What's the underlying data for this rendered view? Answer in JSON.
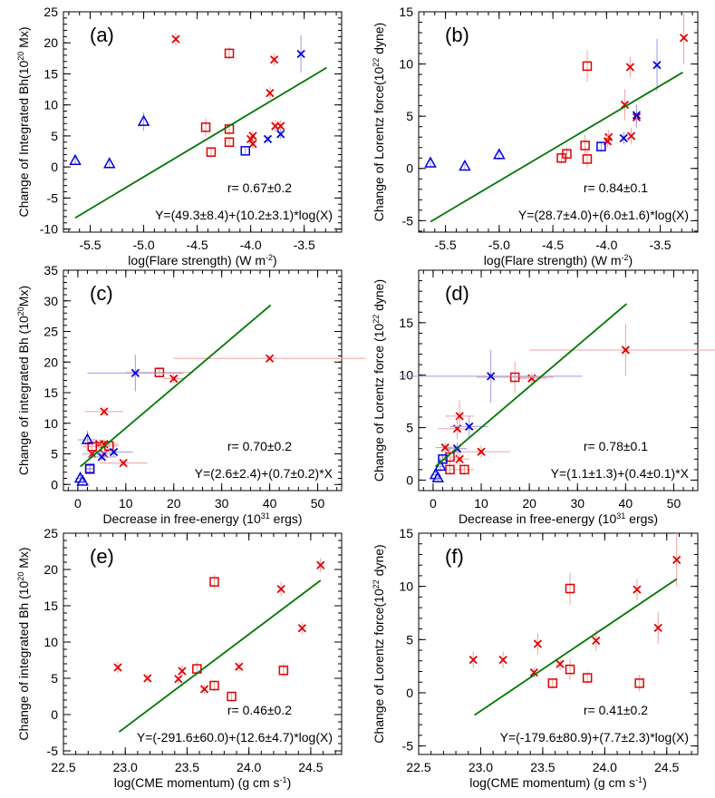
{
  "chart_data": [
    {
      "type": "scatter",
      "panel_label": "(a)",
      "ylabel": "Change of Integrated Bh(10",
      "ylabel_exp": "20",
      "ylabel_unit": " Mx)",
      "xlabel": "log(Flare strength) (W m",
      "xlabel_exp": "-2",
      "xlabel_tail": ")",
      "xlim": [
        -5.75,
        -3.15
      ],
      "ylim": [
        -10.5,
        25
      ],
      "xticks": [
        -5.5,
        -5.0,
        -4.5,
        -4.0,
        -3.5
      ],
      "xtick_labels": [
        "-5.5",
        "-5.0",
        "-4.5",
        "-4.0",
        "-3.5"
      ],
      "yticks": [
        -10,
        -5,
        0,
        5,
        10,
        15,
        20,
        25
      ],
      "ytick_labels": [
        "-10",
        "-5",
        "0",
        "5",
        "10",
        "15",
        "20",
        "25"
      ],
      "correlation": "r= 0.67±0.2",
      "fit_label": "Y=(49.3±8.4)+(10.2±3.1)*log(X)",
      "fit_line": [
        [
          -5.64,
          -8.2
        ],
        [
          -3.29,
          16.0
        ]
      ],
      "series": [
        {
          "marker": "x",
          "color": "#e00000",
          "points": [
            [
              -4.7,
              20.6,
              0,
              1.0
            ],
            [
              -3.78,
              17.3,
              0,
              1.0
            ],
            [
              -3.82,
              11.9,
              0,
              1.0
            ],
            [
              -3.77,
              6.6,
              0,
              1.0
            ],
            [
              -3.72,
              6.6,
              0,
              1.0
            ],
            [
              -3.98,
              5.0,
              0,
              0.8
            ],
            [
              -4.0,
              4.5,
              0,
              0.8
            ],
            [
              -3.98,
              3.7,
              0,
              0.8
            ]
          ]
        },
        {
          "marker": "square",
          "color": "#e00000",
          "points": [
            [
              -4.2,
              18.3,
              0,
              1.0
            ],
            [
              -4.42,
              6.4,
              0,
              1.5
            ],
            [
              -4.2,
              6.1,
              0,
              1.0
            ],
            [
              -4.2,
              4.0,
              0,
              0.8
            ],
            [
              -4.37,
              2.4,
              0,
              0.6
            ]
          ]
        },
        {
          "marker": "x",
          "color": "#0000e0",
          "points": [
            [
              -3.53,
              18.2,
              0,
              3.0
            ],
            [
              -3.72,
              5.3,
              0,
              0.8
            ],
            [
              -3.84,
              4.5,
              0,
              0.6
            ]
          ]
        },
        {
          "marker": "square",
          "color": "#0000e0",
          "points": [
            [
              -4.05,
              2.6,
              0,
              0.5
            ]
          ]
        },
        {
          "marker": "triangle",
          "color": "#0000e0",
          "points": [
            [
              -5.0,
              7.3,
              0,
              1.5
            ],
            [
              -5.64,
              1.0,
              0,
              0.6
            ],
            [
              -5.32,
              0.5,
              0,
              0.5
            ]
          ]
        }
      ]
    },
    {
      "type": "scatter",
      "panel_label": "(b)",
      "ylabel": "Change of Lorentz force(10",
      "ylabel_exp": "22",
      "ylabel_unit": " dyne)",
      "xlabel": "log(Flare strength) (W m",
      "xlabel_exp": "-2",
      "xlabel_tail": ")",
      "xlim": [
        -5.75,
        -3.15
      ],
      "ylim": [
        -6.1,
        15
      ],
      "xticks": [
        -5.5,
        -5.0,
        -4.5,
        -4.0,
        -3.5
      ],
      "xtick_labels": [
        "-5.5",
        "-5.0",
        "-4.5",
        "-4.0",
        "-3.5"
      ],
      "yticks": [
        -5,
        0,
        5,
        10,
        15
      ],
      "ytick_labels": [
        "-5",
        "0",
        "5",
        "10",
        "15"
      ],
      "correlation": "r= 0.84±0.1",
      "fit_label": "Y=(28.7±4.0)+(6.0±1.6)*log(X)",
      "fit_line": [
        [
          -5.64,
          -5.1
        ],
        [
          -3.29,
          9.2
        ]
      ],
      "series": [
        {
          "marker": "x",
          "color": "#e00000",
          "points": [
            [
              -3.28,
              12.5,
              0,
              2.5
            ],
            [
              -3.78,
              9.7,
              0,
              1.0
            ],
            [
              -3.83,
              6.1,
              0,
              1.5
            ],
            [
              -3.72,
              4.9,
              0,
              1.0
            ],
            [
              -3.77,
              3.1,
              0,
              0.8
            ],
            [
              -3.98,
              3.0,
              0,
              0.7
            ],
            [
              -3.99,
              2.6,
              0,
              0.6
            ]
          ]
        },
        {
          "marker": "square",
          "color": "#e00000",
          "points": [
            [
              -4.18,
              9.8,
              0,
              1.5
            ],
            [
              -4.2,
              2.2,
              0,
              1.0
            ],
            [
              -4.18,
              0.9,
              0,
              0.8
            ],
            [
              -4.37,
              1.4,
              0,
              0.6
            ],
            [
              -4.42,
              1.0,
              0,
              0.5
            ]
          ]
        },
        {
          "marker": "x",
          "color": "#0000e0",
          "points": [
            [
              -3.53,
              9.9,
              0,
              2.5
            ],
            [
              -3.72,
              5.1,
              0,
              1.0
            ],
            [
              -3.84,
              2.9,
              0,
              0.6
            ]
          ]
        },
        {
          "marker": "square",
          "color": "#0000e0",
          "points": [
            [
              -4.05,
              2.1,
              0,
              0.5
            ]
          ]
        },
        {
          "marker": "triangle",
          "color": "#0000e0",
          "points": [
            [
              -5.64,
              0.5,
              0,
              0.4
            ],
            [
              -5.32,
              0.2,
              0,
              0.3
            ],
            [
              -5.0,
              1.3,
              0,
              0.5
            ]
          ]
        }
      ]
    },
    {
      "type": "scatter",
      "panel_label": "(c)",
      "ylabel": "Change of integrated Bh (10",
      "ylabel_exp": "20",
      "ylabel_unit": "Mx)",
      "xlabel": "Decrease in free-energy (10",
      "xlabel_exp": "31",
      "xlabel_tail": " ergs)",
      "xlim": [
        -3,
        55
      ],
      "ylim": [
        -1,
        35
      ],
      "xticks": [
        0,
        10,
        20,
        30,
        40,
        50
      ],
      "xtick_labels": [
        "0",
        "10",
        "20",
        "30",
        "40",
        "50"
      ],
      "yticks": [
        0,
        5,
        10,
        15,
        20,
        25,
        30,
        35
      ],
      "ytick_labels": [
        "0",
        "5",
        "10",
        "15",
        "20",
        "25",
        "30",
        "35"
      ],
      "correlation": "r= 0.70±0.2",
      "fit_label": "Y=(2.6±2.4)+(0.7±0.2)*X",
      "fit_line": [
        [
          0.5,
          2.9
        ],
        [
          40.2,
          29.3
        ]
      ],
      "series": [
        {
          "marker": "x",
          "color": "#e00000",
          "points": [
            [
              40,
              20.6,
              20,
              0
            ],
            [
              20,
              17.3,
              2,
              0.8
            ],
            [
              5.5,
              11.9,
              4,
              0.8
            ],
            [
              4.5,
              6.6,
              3,
              0.8
            ],
            [
              5.5,
              6.6,
              3,
              0.8
            ],
            [
              3.0,
              5.0,
              2,
              0.5
            ],
            [
              5.5,
              5.0,
              2,
              0.5
            ],
            [
              9.5,
              3.5,
              5,
              0.6
            ]
          ]
        },
        {
          "marker": "square",
          "color": "#e00000",
          "points": [
            [
              17,
              18.3,
              7,
              0.8
            ],
            [
              3.0,
              6.2,
              2,
              0.8
            ],
            [
              6.5,
              6.3,
              2,
              0.8
            ],
            [
              2.5,
              2.5,
              0.5,
              0.6
            ]
          ]
        },
        {
          "marker": "x",
          "color": "#0000e0",
          "points": [
            [
              12,
              18.2,
              10,
              3.0
            ],
            [
              7.5,
              5.3,
              4,
              0.8
            ],
            [
              5.0,
              4.5,
              3,
              0.6
            ]
          ]
        },
        {
          "marker": "square",
          "color": "#0000e0",
          "points": [
            [
              2.5,
              2.6,
              1,
              0.5
            ]
          ]
        },
        {
          "marker": "triangle",
          "color": "#0000e0",
          "points": [
            [
              2.0,
              7.3,
              2,
              1.5
            ],
            [
              0.5,
              1.0,
              1,
              0.6
            ],
            [
              1.0,
              0.5,
              0.5,
              0.5
            ]
          ]
        }
      ]
    },
    {
      "type": "scatter",
      "panel_label": "(d)",
      "ylabel": "Change of Lorentz force (10",
      "ylabel_exp": "22",
      "ylabel_unit": " dyne)",
      "xlabel": "Decrease in free-energy (10",
      "xlabel_exp": "31",
      "xlabel_tail": " ergs)",
      "xlim": [
        -3,
        55
      ],
      "ylim": [
        -1,
        20
      ],
      "xticks": [
        0,
        10,
        20,
        30,
        40,
        50
      ],
      "xtick_labels": [
        "0",
        "10",
        "20",
        "30",
        "40",
        "50"
      ],
      "yticks": [
        0,
        5,
        10,
        15
      ],
      "ytick_labels": [
        "0",
        "5",
        "10",
        "15"
      ],
      "correlation": "r= 0.78±0.1",
      "fit_label": "Y=(1.1±1.3)+(0.4±0.1)*X",
      "fit_line": [
        [
          0.5,
          1.3
        ],
        [
          40.2,
          16.8
        ]
      ],
      "series": [
        {
          "marker": "x",
          "color": "#e00000",
          "points": [
            [
              40,
              12.4,
              20,
              2.5
            ],
            [
              20.5,
              9.7,
              3,
              0.5
            ],
            [
              5.5,
              6.1,
              3,
              1.5
            ],
            [
              5.0,
              4.9,
              4,
              1.0
            ],
            [
              5.0,
              3.0,
              2,
              0.5
            ],
            [
              2.5,
              3.1,
              2,
              0.5
            ],
            [
              10,
              2.7,
              6,
              0.6
            ],
            [
              5.5,
              2.0,
              2,
              0.6
            ]
          ]
        },
        {
          "marker": "square",
          "color": "#e00000",
          "points": [
            [
              17,
              9.8,
              8,
              1.5
            ],
            [
              3.5,
              2.2,
              2,
              1.0
            ],
            [
              3.5,
              1.0,
              1,
              0.5
            ],
            [
              6.5,
              1.0,
              2,
              0.5
            ]
          ]
        },
        {
          "marker": "x",
          "color": "#0000e0",
          "points": [
            [
              12,
              9.9,
              19,
              2.5
            ],
            [
              7.5,
              5.1,
              4,
              1.0
            ],
            [
              5.0,
              3.0,
              2,
              0.6
            ]
          ]
        },
        {
          "marker": "square",
          "color": "#0000e0",
          "points": [
            [
              2.0,
              2.0,
              1,
              0.5
            ]
          ]
        },
        {
          "marker": "triangle",
          "color": "#0000e0",
          "points": [
            [
              0.5,
              0.5,
              1,
              0.5
            ],
            [
              1.5,
              1.3,
              1,
              0.5
            ],
            [
              1.0,
              0.2,
              0.5,
              0.3
            ]
          ]
        }
      ]
    },
    {
      "type": "scatter",
      "panel_label": "(e)",
      "ylabel": "Change of integrated Bh (10",
      "ylabel_exp": "20",
      "ylabel_unit": " Mx)",
      "xlabel": "log(CME momentum) (g cm s",
      "xlabel_exp": "-1",
      "xlabel_tail": ")",
      "xlim": [
        22.5,
        24.75
      ],
      "ylim": [
        -5.5,
        25
      ],
      "xticks": [
        22.5,
        23.0,
        23.5,
        24.0,
        24.5
      ],
      "xtick_labels": [
        "22.5",
        "23.0",
        "23.5",
        "24.0",
        "24.5"
      ],
      "yticks": [
        -5,
        0,
        5,
        10,
        15,
        20,
        25
      ],
      "ytick_labels": [
        "-5",
        "0",
        "5",
        "10",
        "15",
        "20",
        "25"
      ],
      "correlation": "r= 0.46±0.2",
      "fit_label": "Y=(-291.6±60.0)+(12.6±4.7)*log(X)",
      "fit_line": [
        [
          22.95,
          -2.4
        ],
        [
          24.58,
          18.5
        ]
      ],
      "series": [
        {
          "marker": "x",
          "color": "#e00000",
          "points": [
            [
              22.94,
              6.5,
              0,
              0.8
            ],
            [
              23.18,
              5.0,
              0,
              0.6
            ],
            [
              23.43,
              4.9,
              0,
              0.6
            ],
            [
              23.46,
              6.0,
              0,
              0.8
            ],
            [
              23.64,
              3.5,
              0,
              0.6
            ],
            [
              23.92,
              6.6,
              0,
              0.6
            ],
            [
              24.26,
              17.3,
              0,
              1.0
            ],
            [
              24.43,
              11.9,
              0,
              0.8
            ],
            [
              24.58,
              20.6,
              0,
              1.0
            ]
          ]
        },
        {
          "marker": "square",
          "color": "#e00000",
          "points": [
            [
              23.58,
              6.3,
              0,
              1.0
            ],
            [
              23.72,
              18.3,
              0,
              1.0
            ],
            [
              23.72,
              4.0,
              0,
              0.8
            ],
            [
              23.86,
              2.5,
              0,
              0.6
            ],
            [
              24.28,
              6.1,
              0,
              1.0
            ]
          ]
        }
      ]
    },
    {
      "type": "scatter",
      "panel_label": "(f)",
      "ylabel": "Change of Lorentz force(10",
      "ylabel_exp": "22",
      "ylabel_unit": " dyne)",
      "xlabel": "log(CME momentum) (g cm s",
      "xlabel_exp": "-1",
      "xlabel_tail": ")",
      "xlim": [
        22.5,
        24.75
      ],
      "ylim": [
        -5.8,
        15
      ],
      "xticks": [
        22.5,
        23.0,
        23.5,
        24.0,
        24.5
      ],
      "xtick_labels": [
        "22.5",
        "23.0",
        "23.5",
        "24.0",
        "24.5"
      ],
      "yticks": [
        -5,
        0,
        5,
        10,
        15
      ],
      "ytick_labels": [
        "-5",
        "0",
        "5",
        "10",
        "15"
      ],
      "correlation": "r= 0.41±0.2",
      "fit_label": "Y=(-179.6±80.9)+(7.7±2.3)*log(X)",
      "fit_line": [
        [
          22.95,
          -2.1
        ],
        [
          24.58,
          10.7
        ]
      ],
      "series": [
        {
          "marker": "x",
          "color": "#e00000",
          "points": [
            [
              22.94,
              3.1,
              0,
              0.8
            ],
            [
              23.18,
              3.1,
              0,
              0.8
            ],
            [
              23.43,
              1.9,
              0,
              0.5
            ],
            [
              23.46,
              4.6,
              0,
              1.0
            ],
            [
              23.64,
              2.7,
              0,
              0.6
            ],
            [
              23.93,
              4.9,
              0,
              1.0
            ],
            [
              24.26,
              9.7,
              0,
              1.0
            ],
            [
              24.43,
              6.1,
              0,
              1.5
            ],
            [
              24.58,
              12.5,
              0,
              2.5
            ]
          ]
        },
        {
          "marker": "square",
          "color": "#e00000",
          "points": [
            [
              23.58,
              0.9,
              0,
              0.5
            ],
            [
              23.72,
              9.8,
              0,
              1.5
            ],
            [
              23.72,
              2.2,
              0,
              1.0
            ],
            [
              23.86,
              1.4,
              0,
              0.6
            ],
            [
              24.28,
              0.9,
              0,
              0.8
            ]
          ]
        }
      ]
    }
  ]
}
